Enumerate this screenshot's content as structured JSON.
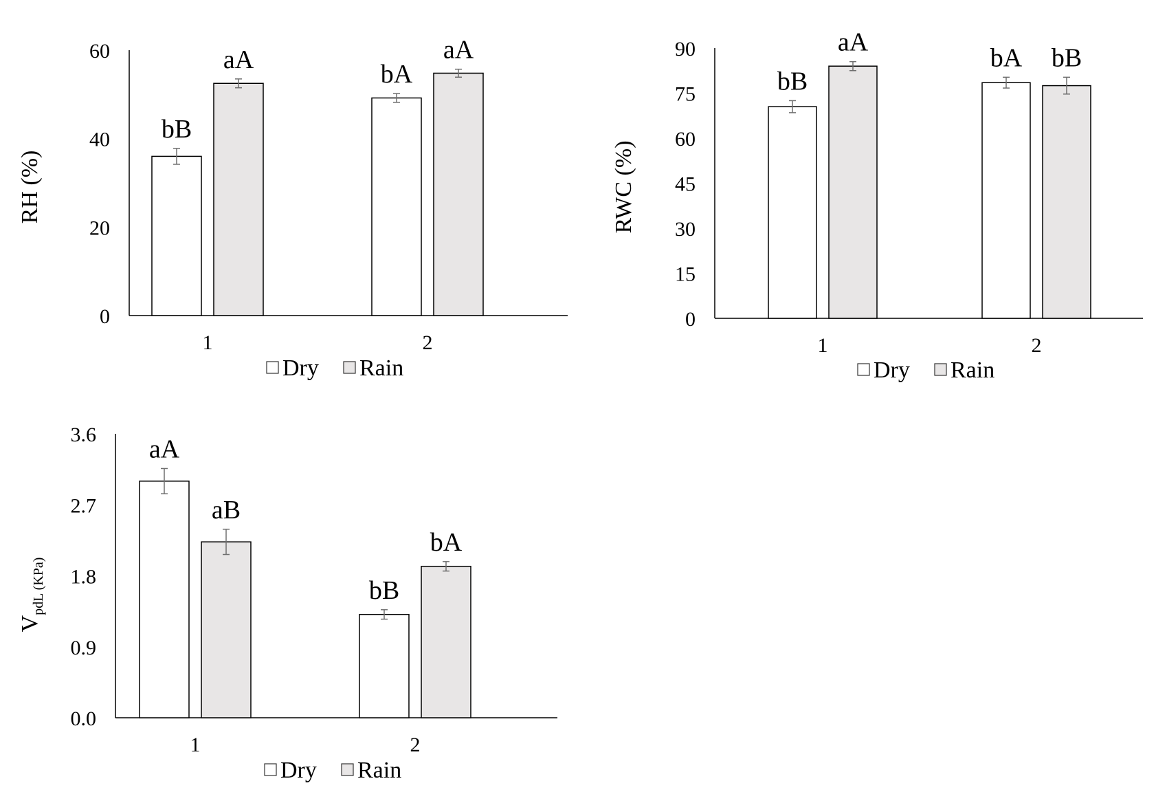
{
  "chart_data": [
    {
      "type": "bar",
      "categories": [
        "1",
        "2"
      ],
      "series": [
        {
          "name": "Dry",
          "values": [
            36,
            49.2
          ],
          "errors": [
            1.8,
            1.0
          ],
          "labels": [
            "bB",
            "bA"
          ]
        },
        {
          "name": "Rain",
          "values": [
            52.5,
            54.8
          ],
          "errors": [
            1.0,
            0.9
          ],
          "labels": [
            "aA",
            "aA"
          ]
        }
      ],
      "ylabel": "RH (%)",
      "ylim": [
        0,
        60
      ],
      "yticks": [
        "0",
        "20",
        "40",
        "60"
      ],
      "legend": "bottom",
      "grid": false
    },
    {
      "type": "bar",
      "categories": [
        "1",
        "2"
      ],
      "series": [
        {
          "name": "Dry",
          "values": [
            70.5,
            78.5
          ],
          "errors": [
            2.0,
            1.8
          ],
          "labels": [
            "bB",
            "bA"
          ]
        },
        {
          "name": "Rain",
          "values": [
            84.0,
            77.5
          ],
          "errors": [
            1.5,
            2.8
          ],
          "labels": [
            "aA",
            "bB"
          ]
        }
      ],
      "ylabel": "RWC (%)",
      "ylim": [
        0,
        90
      ],
      "yticks": [
        "0",
        "15",
        "30",
        "45",
        "60",
        "75",
        "90"
      ],
      "legend": "bottom",
      "grid": false
    },
    {
      "type": "bar",
      "categories": [
        "1",
        "2"
      ],
      "series": [
        {
          "name": "Dry",
          "values": [
            3.0,
            1.31
          ],
          "errors": [
            0.16,
            0.06
          ],
          "labels": [
            "aA",
            "bB"
          ]
        },
        {
          "name": "Rain",
          "values": [
            2.23,
            1.92
          ],
          "errors": [
            0.16,
            0.06
          ],
          "labels": [
            "aB",
            "bA"
          ]
        }
      ],
      "ylabel": "V",
      "ylabel_sub": "pdL (KPa)",
      "ylim": [
        0,
        3.6
      ],
      "yticks": [
        "0.0",
        "0.9",
        "1.8",
        "2.7",
        "3.6"
      ],
      "legend": "bottom",
      "grid": false
    }
  ],
  "colors": {
    "dry_fill": "#ffffff",
    "rain_fill": "#e8e6e6",
    "bar_stroke": "#000000",
    "error_bar": "#6f6f6f",
    "axis": "#000000"
  }
}
